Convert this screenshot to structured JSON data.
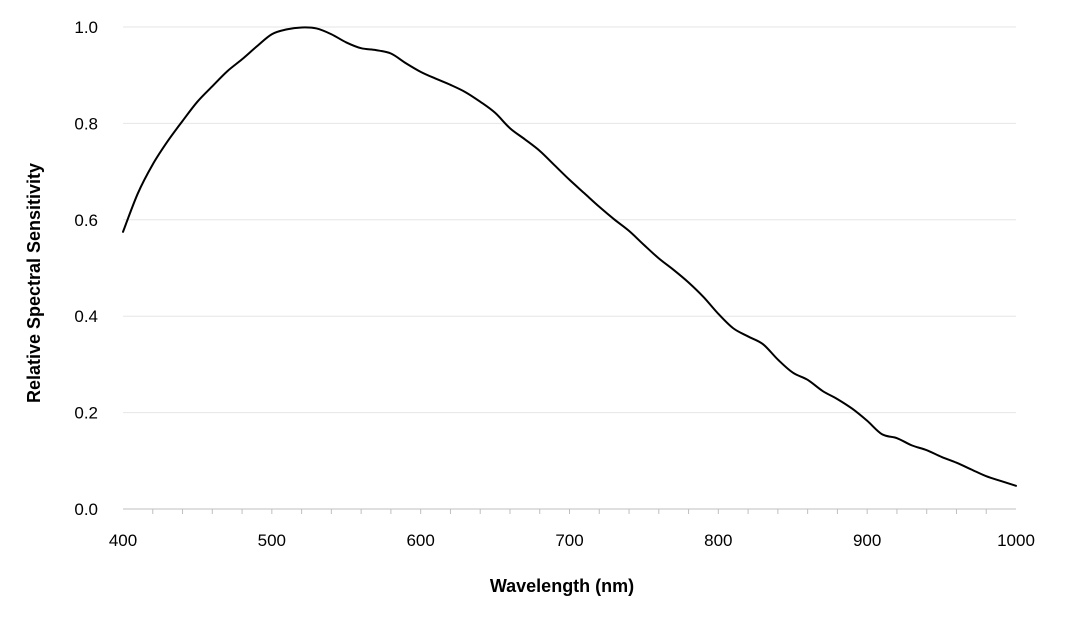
{
  "chart_data": {
    "type": "line",
    "title": "",
    "xlabel": "Wavelength (nm)",
    "ylabel": "Relative Spectral Sensitivity",
    "xlim": [
      400,
      1000
    ],
    "ylim": [
      0,
      1.0
    ],
    "x_ticks": [
      "400",
      "500",
      "600",
      "700",
      "800",
      "900",
      "1000"
    ],
    "y_ticks": [
      "0.0",
      "0.2",
      "0.4",
      "0.6",
      "0.8",
      "1.0"
    ],
    "grid": "horizontal",
    "legend": "none",
    "series": [
      {
        "color": "#000000",
        "x": [
          400,
          410,
          420,
          430,
          440,
          450,
          460,
          470,
          480,
          490,
          500,
          510,
          520,
          530,
          540,
          550,
          560,
          570,
          580,
          590,
          600,
          610,
          620,
          630,
          640,
          650,
          660,
          670,
          680,
          690,
          700,
          710,
          720,
          730,
          740,
          750,
          760,
          770,
          780,
          790,
          800,
          810,
          820,
          830,
          840,
          850,
          860,
          870,
          880,
          890,
          900,
          910,
          920,
          930,
          940,
          950,
          960,
          970,
          980,
          990,
          1000
        ],
        "y": [
          0.575,
          0.655,
          0.715,
          0.763,
          0.805,
          0.845,
          0.877,
          0.908,
          0.933,
          0.96,
          0.985,
          0.995,
          0.999,
          0.997,
          0.985,
          0.968,
          0.956,
          0.952,
          0.945,
          0.925,
          0.907,
          0.893,
          0.88,
          0.865,
          0.845,
          0.822,
          0.79,
          0.767,
          0.743,
          0.713,
          0.683,
          0.655,
          0.627,
          0.601,
          0.577,
          0.548,
          0.52,
          0.496,
          0.47,
          0.44,
          0.405,
          0.375,
          0.358,
          0.342,
          0.31,
          0.283,
          0.268,
          0.245,
          0.228,
          0.208,
          0.183,
          0.155,
          0.147,
          0.132,
          0.122,
          0.108,
          0.096,
          0.082,
          0.068,
          0.058,
          0.048
        ]
      }
    ]
  }
}
